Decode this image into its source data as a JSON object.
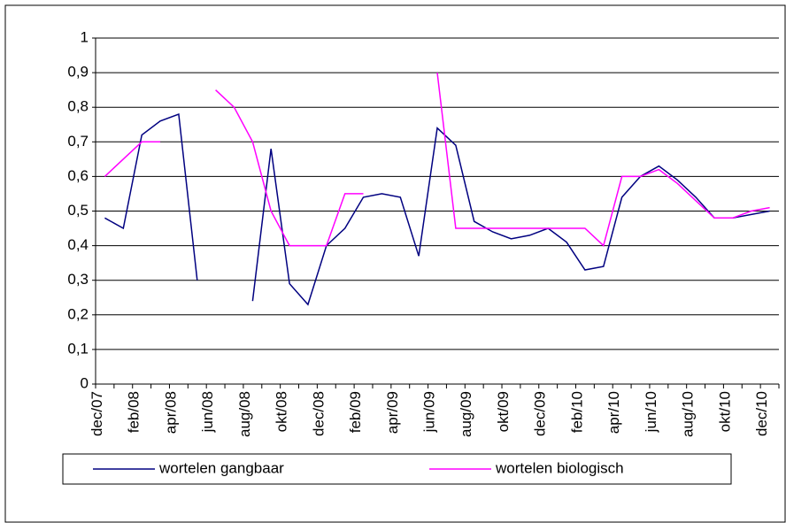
{
  "chart_data": {
    "type": "line",
    "categories": [
      "dec/07",
      null,
      "feb/08",
      null,
      "apr/08",
      null,
      "jun/08",
      null,
      "aug/08",
      null,
      "okt/08",
      null,
      "dec/08",
      null,
      "feb/09",
      null,
      "apr/09",
      null,
      "jun/09",
      null,
      "aug/09",
      null,
      "okt/09",
      null,
      "dec/09",
      null,
      "feb/10",
      null,
      "apr/10",
      null,
      "jun/10",
      null,
      "aug/10",
      null,
      "okt/10",
      null,
      "dec/10"
    ],
    "series": [
      {
        "name": "wortelen gangbaar",
        "color": "#000080",
        "values": [
          0.48,
          0.45,
          0.72,
          0.76,
          0.78,
          0.3,
          null,
          null,
          0.24,
          0.68,
          0.29,
          0.23,
          0.4,
          0.45,
          0.54,
          0.55,
          0.54,
          0.37,
          0.74,
          0.69,
          0.47,
          0.44,
          0.42,
          0.43,
          0.45,
          0.41,
          0.33,
          0.34,
          0.54,
          0.6,
          0.63,
          0.59,
          0.54,
          0.48,
          0.48,
          0.49,
          0.5
        ]
      },
      {
        "name": "wortelen biologisch",
        "color": "#ff00ff",
        "values": [
          0.6,
          0.65,
          0.7,
          0.7,
          null,
          null,
          0.85,
          0.8,
          0.7,
          0.5,
          0.4,
          0.4,
          0.4,
          0.55,
          0.55,
          null,
          null,
          null,
          0.9,
          0.45,
          0.45,
          0.45,
          0.45,
          0.45,
          0.45,
          0.45,
          0.45,
          0.4,
          0.6,
          0.6,
          0.62,
          0.58,
          0.53,
          0.48,
          0.48,
          0.5,
          0.51
        ]
      }
    ],
    "ylim": [
      0,
      1
    ],
    "yticks": [
      0,
      {
        "value": 0.1,
        "label": "0,1"
      },
      {
        "value": 0.2,
        "label": "0,2"
      },
      {
        "value": 0.3,
        "label": "0,3"
      },
      {
        "value": 0.4,
        "label": "0,4"
      },
      {
        "value": 0.5,
        "label": "0,5"
      },
      {
        "value": 0.6,
        "label": "0,6"
      },
      {
        "value": 0.7,
        "label": "0,7"
      },
      {
        "value": 0.8,
        "label": "0,8"
      },
      {
        "value": 0.9,
        "label": "0,9"
      },
      1
    ],
    "grid": true,
    "legend": "bottom"
  }
}
